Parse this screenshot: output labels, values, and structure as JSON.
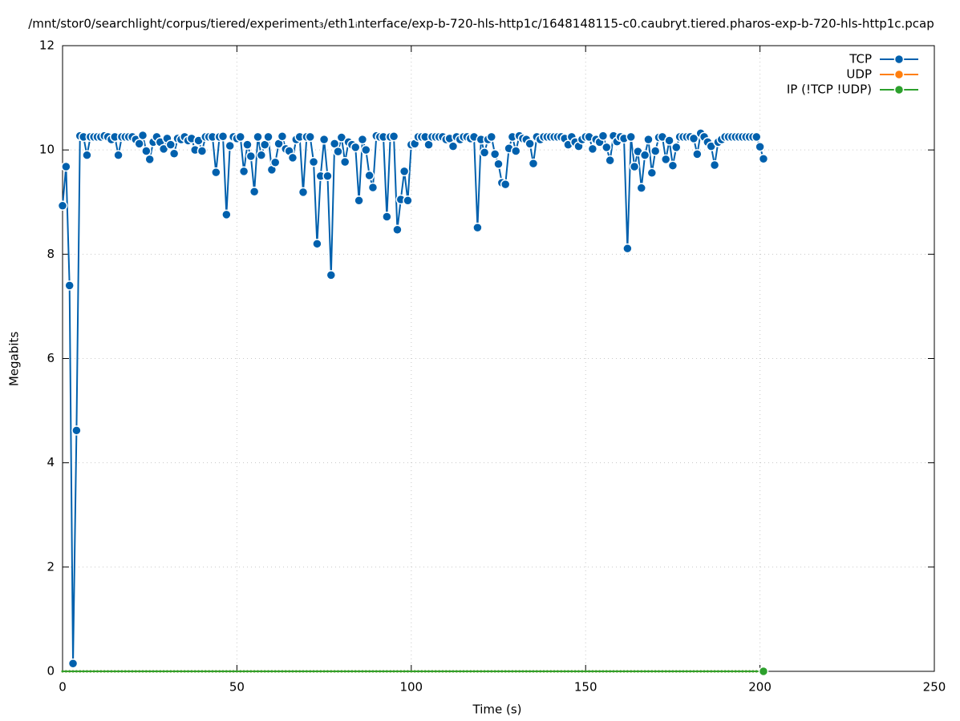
{
  "chart_data": {
    "type": "line",
    "title": "/mnt/stor0/searchlight/corpus/tiered/experiment₃/eth1ᵢnterface/exp-b-720-hls-http1c/1648148115-c0.caubryt.tiered.pharos-exp-b-720-hls-http1c.pcap",
    "xlabel": "Time (s)",
    "ylabel": "Megabits",
    "xlim": [
      0,
      250
    ],
    "xticks": [
      0,
      50,
      100,
      150,
      200,
      250
    ],
    "ylim": [
      0,
      12
    ],
    "yticks": [
      0,
      2,
      4,
      6,
      8,
      10,
      12
    ],
    "grid": true,
    "legend": "top-right",
    "x": [
      0,
      1,
      2,
      3,
      4,
      5,
      6,
      7,
      8,
      9,
      10,
      11,
      12,
      13,
      14,
      15,
      16,
      17,
      18,
      19,
      20,
      21,
      22,
      23,
      24,
      25,
      26,
      27,
      28,
      29,
      30,
      31,
      32,
      33,
      34,
      35,
      36,
      37,
      38,
      39,
      40,
      41,
      42,
      43,
      44,
      45,
      46,
      47,
      48,
      49,
      50,
      51,
      52,
      53,
      54,
      55,
      56,
      57,
      58,
      59,
      60,
      61,
      62,
      63,
      64,
      65,
      66,
      67,
      68,
      69,
      70,
      71,
      72,
      73,
      74,
      75,
      76,
      77,
      78,
      79,
      80,
      81,
      82,
      83,
      84,
      85,
      86,
      87,
      88,
      89,
      90,
      91,
      92,
      93,
      94,
      95,
      96,
      97,
      98,
      99,
      100,
      101,
      102,
      103,
      104,
      105,
      106,
      107,
      108,
      109,
      110,
      111,
      112,
      113,
      114,
      115,
      116,
      117,
      118,
      119,
      120,
      121,
      122,
      123,
      124,
      125,
      126,
      127,
      128,
      129,
      130,
      131,
      132,
      133,
      134,
      135,
      136,
      137,
      138,
      139,
      140,
      141,
      142,
      143,
      144,
      145,
      146,
      147,
      148,
      149,
      150,
      151,
      152,
      153,
      154,
      155,
      156,
      157,
      158,
      159,
      160,
      161,
      162,
      163,
      164,
      165,
      166,
      167,
      168,
      169,
      170,
      171,
      172,
      173,
      174,
      175,
      176,
      177,
      178,
      179,
      180,
      181,
      182,
      183,
      184,
      185,
      186,
      187,
      188,
      189,
      190,
      191,
      192,
      193,
      194,
      195,
      196,
      197,
      198,
      199,
      200,
      201
    ],
    "series": [
      {
        "name": "TCP",
        "color": "#0060ad",
        "values": [
          8.93,
          9.68,
          7.4,
          0.15,
          4.62,
          10.27,
          10.25,
          9.9,
          10.25,
          10.25,
          10.25,
          10.25,
          10.27,
          10.25,
          10.2,
          10.25,
          9.9,
          10.25,
          10.25,
          10.25,
          10.25,
          10.2,
          10.12,
          10.28,
          9.98,
          9.82,
          10.15,
          10.25,
          10.15,
          10.02,
          10.22,
          10.1,
          9.93,
          10.22,
          10.2,
          10.25,
          10.18,
          10.22,
          10.0,
          10.18,
          9.98,
          10.25,
          10.25,
          10.25,
          9.57,
          10.25,
          10.26,
          8.76,
          10.08,
          10.25,
          10.22,
          10.25,
          9.59,
          10.1,
          9.88,
          9.2,
          10.25,
          9.9,
          10.1,
          10.25,
          9.62,
          9.76,
          10.12,
          10.26,
          10.02,
          9.98,
          9.85,
          10.2,
          10.25,
          9.19,
          10.25,
          10.25,
          9.77,
          8.2,
          9.5,
          10.2,
          9.5,
          7.6,
          10.12,
          9.97,
          10.24,
          9.77,
          10.15,
          10.1,
          10.05,
          9.03,
          10.2,
          10.0,
          9.51,
          9.28,
          10.27,
          10.25,
          10.25,
          8.72,
          10.25,
          10.26,
          8.47,
          9.05,
          9.59,
          9.03,
          10.1,
          10.12,
          10.25,
          10.25,
          10.25,
          10.1,
          10.25,
          10.25,
          10.25,
          10.25,
          10.2,
          10.22,
          10.07,
          10.25,
          10.2,
          10.25,
          10.25,
          10.22,
          10.25,
          8.51,
          10.2,
          9.95,
          10.2,
          10.25,
          9.92,
          9.73,
          9.37,
          9.34,
          10.03,
          10.25,
          9.98,
          10.27,
          10.22,
          10.2,
          10.12,
          9.74,
          10.25,
          10.2,
          10.25,
          10.25,
          10.25,
          10.25,
          10.25,
          10.25,
          10.22,
          10.1,
          10.25,
          10.15,
          10.07,
          10.2,
          10.25,
          10.25,
          10.02,
          10.2,
          10.15,
          10.27,
          10.05,
          9.8,
          10.27,
          10.16,
          10.25,
          10.22,
          8.11,
          10.25,
          9.68,
          9.97,
          9.27,
          9.9,
          10.2,
          9.56,
          9.98,
          10.24,
          10.25,
          9.82,
          10.18,
          9.7,
          10.05,
          10.25,
          10.25,
          10.25,
          10.25,
          10.22,
          9.92,
          10.32,
          10.25,
          10.15,
          10.07,
          9.71,
          10.15,
          10.2,
          10.25,
          10.25,
          10.25,
          10.25,
          10.25,
          10.25,
          10.25,
          10.25,
          10.25,
          10.25,
          10.06,
          9.83
        ]
      },
      {
        "name": "UDP",
        "color": "#ff7f0e",
        "values": [
          0,
          0,
          0,
          0,
          0,
          0,
          0,
          0,
          0,
          0,
          0,
          0,
          0,
          0,
          0,
          0,
          0,
          0,
          0,
          0,
          0,
          0,
          0,
          0,
          0,
          0,
          0,
          0,
          0,
          0,
          0,
          0,
          0,
          0,
          0,
          0,
          0,
          0,
          0,
          0,
          0,
          0,
          0,
          0,
          0,
          0,
          0,
          0,
          0,
          0,
          0,
          0,
          0,
          0,
          0,
          0,
          0,
          0,
          0,
          0,
          0,
          0,
          0,
          0,
          0,
          0,
          0,
          0,
          0,
          0,
          0,
          0,
          0,
          0,
          0,
          0,
          0,
          0,
          0,
          0,
          0,
          0,
          0,
          0,
          0,
          0,
          0,
          0,
          0,
          0,
          0,
          0,
          0,
          0,
          0,
          0,
          0,
          0,
          0,
          0,
          0,
          0,
          0,
          0,
          0,
          0,
          0,
          0,
          0,
          0,
          0,
          0,
          0,
          0,
          0,
          0,
          0,
          0,
          0,
          0,
          0,
          0,
          0,
          0,
          0,
          0,
          0,
          0,
          0,
          0,
          0,
          0,
          0,
          0,
          0,
          0,
          0,
          0,
          0,
          0,
          0,
          0,
          0,
          0,
          0,
          0,
          0,
          0,
          0,
          0,
          0,
          0,
          0,
          0,
          0,
          0,
          0,
          0,
          0,
          0,
          0,
          0,
          0,
          0,
          0,
          0,
          0,
          0,
          0,
          0,
          0,
          0,
          0,
          0,
          0,
          0,
          0,
          0,
          0,
          0,
          0,
          0,
          0,
          0,
          0,
          0,
          0,
          0,
          0,
          0,
          0,
          0,
          0,
          0,
          0,
          0,
          0,
          0,
          0,
          0,
          0,
          0
        ]
      },
      {
        "name": "IP (!TCP  !UDP)",
        "color": "#2ca02c",
        "values": [
          0,
          0,
          0,
          0,
          0,
          0,
          0,
          0,
          0,
          0,
          0,
          0,
          0,
          0,
          0,
          0,
          0,
          0,
          0,
          0,
          0,
          0,
          0,
          0,
          0,
          0,
          0,
          0,
          0,
          0,
          0,
          0,
          0,
          0,
          0,
          0,
          0,
          0,
          0,
          0,
          0,
          0,
          0,
          0,
          0,
          0,
          0,
          0,
          0,
          0,
          0,
          0,
          0,
          0,
          0,
          0,
          0,
          0,
          0,
          0,
          0,
          0,
          0,
          0,
          0,
          0,
          0,
          0,
          0,
          0,
          0,
          0,
          0,
          0,
          0,
          0,
          0,
          0,
          0,
          0,
          0,
          0,
          0,
          0,
          0,
          0,
          0,
          0,
          0,
          0,
          0,
          0,
          0,
          0,
          0,
          0,
          0,
          0,
          0,
          0,
          0,
          0,
          0,
          0,
          0,
          0,
          0,
          0,
          0,
          0,
          0,
          0,
          0,
          0,
          0,
          0,
          0,
          0,
          0,
          0,
          0,
          0,
          0,
          0,
          0,
          0,
          0,
          0,
          0,
          0,
          0,
          0,
          0,
          0,
          0,
          0,
          0,
          0,
          0,
          0,
          0,
          0,
          0,
          0,
          0,
          0,
          0,
          0,
          0,
          0,
          0,
          0,
          0,
          0,
          0,
          0,
          0,
          0,
          0,
          0,
          0,
          0,
          0,
          0,
          0,
          0,
          0,
          0,
          0,
          0,
          0,
          0,
          0,
          0,
          0,
          0,
          0,
          0,
          0,
          0,
          0,
          0,
          0,
          0,
          0,
          0,
          0,
          0,
          0,
          0,
          0,
          0,
          0,
          0,
          0,
          0,
          0,
          0,
          0,
          0,
          0,
          0
        ]
      }
    ]
  }
}
